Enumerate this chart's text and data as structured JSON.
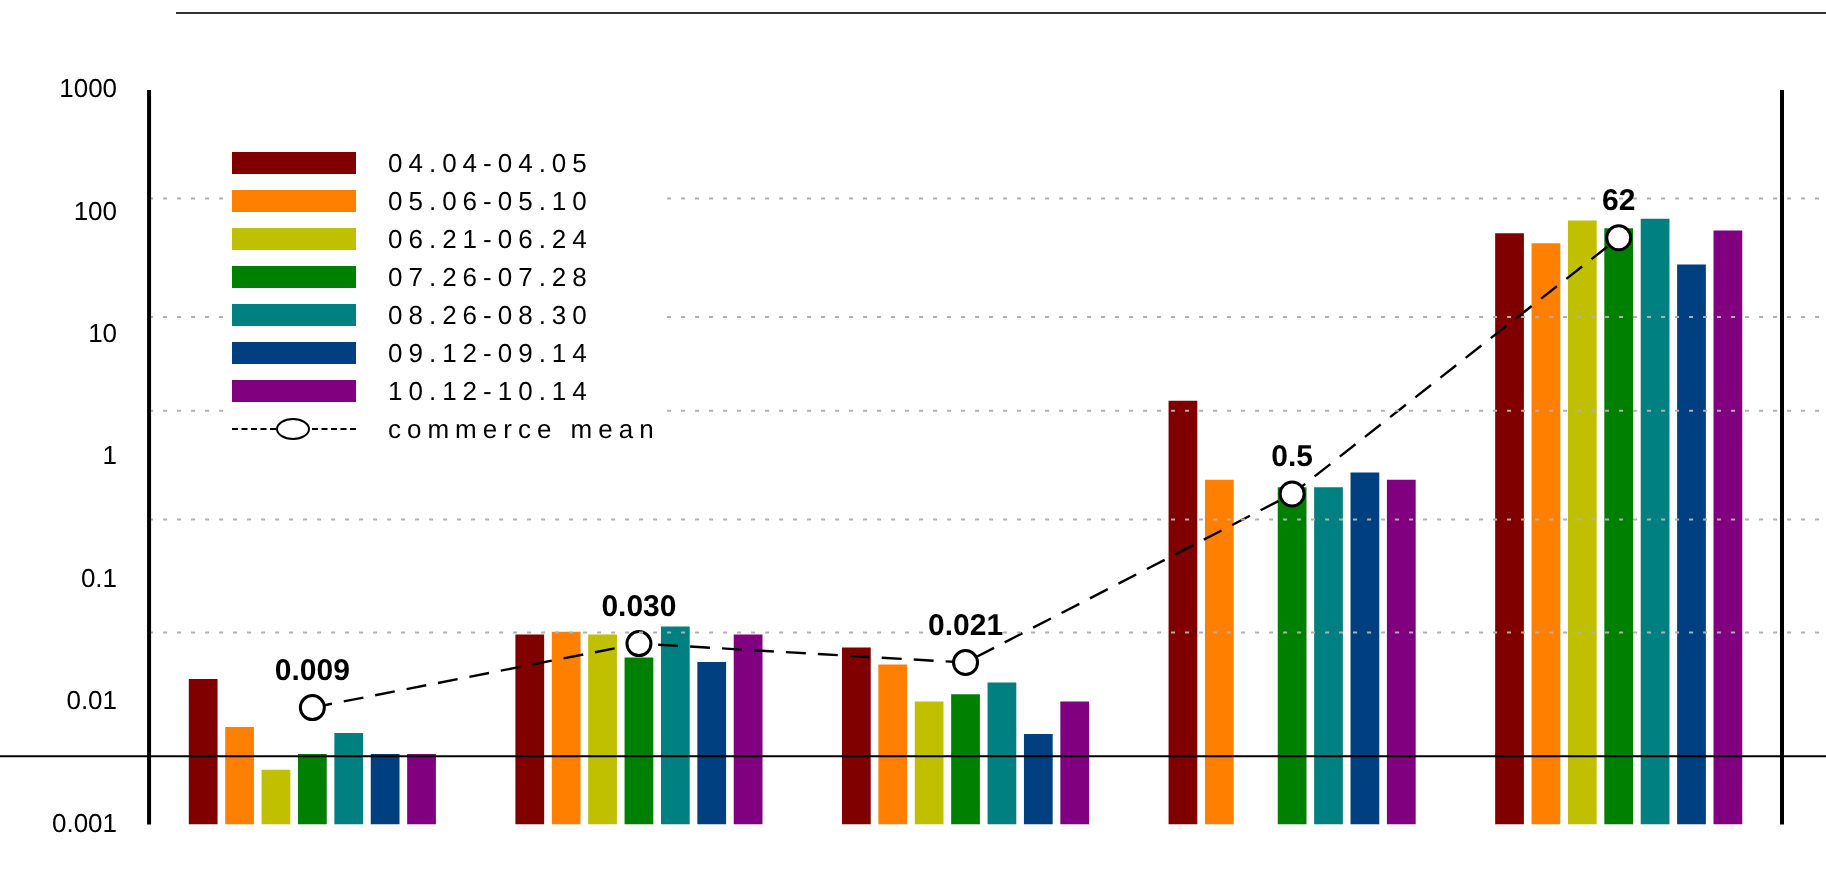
{
  "chart_data": {
    "type": "bar",
    "categories": [
      null,
      null,
      null,
      null,
      null
    ],
    "log": "y",
    "ylim": [
      0.001,
      1000
    ],
    "yticks": [
      {
        "value": 0.001,
        "label": "0.001"
      },
      {
        "value": 0.01,
        "label": "0.01"
      },
      {
        "value": 0.1,
        "label": "0.1"
      },
      {
        "value": 1,
        "label": "1"
      },
      {
        "value": 10,
        "label": "10"
      },
      {
        "value": 100,
        "label": "100"
      },
      {
        "value": 1000,
        "label": "1000"
      }
    ],
    "tick_labels": "y",
    "legend": "top left",
    "grid": false,
    "series": [
      {
        "name": "04.04-04.05",
        "color": "#800000",
        "values": [
          0.016,
          0.037,
          0.029,
          3.0,
          70
        ]
      },
      {
        "name": "05.06-05.10",
        "color": "#ff8000",
        "values": [
          0.0065,
          0.039,
          0.021,
          0.68,
          58
        ]
      },
      {
        "name": "06.21-06.24",
        "color": "#c0c000",
        "values": [
          0.0029,
          0.037,
          0.0105,
          null,
          89
        ]
      },
      {
        "name": "07.26-07.28",
        "color": "#008000",
        "values": [
          0.0039,
          0.024,
          0.012,
          0.59,
          77
        ]
      },
      {
        "name": "08.26-08.30",
        "color": "#008080",
        "values": [
          0.0058,
          0.043,
          0.015,
          0.59,
          92
        ]
      },
      {
        "name": "09.12-09.14",
        "color": "#004080",
        "values": [
          0.0039,
          0.022,
          0.0057,
          0.78,
          39
        ]
      },
      {
        "name": "10.12-10.14",
        "color": "#800080",
        "values": [
          0.0039,
          0.037,
          0.0105,
          0.68,
          74
        ]
      },
      {
        "name": "commerce mean",
        "type": "line",
        "color": "#000000",
        "line_style": "dashed",
        "marker": "circle",
        "values": [
          0.009,
          0.03,
          0.021,
          0.5,
          62
        ],
        "value_labels": [
          "0.009",
          "0.030",
          "0.021",
          "0.5",
          "62"
        ]
      }
    ],
    "ref_lines": [
      {
        "axis": "y",
        "value": 0.0036,
        "color": "#000000",
        "line_style": "solid"
      },
      {
        "axis": "y",
        "value": 0.037,
        "color": "#b0b0b0",
        "line_style": "dotted"
      },
      {
        "axis": "y",
        "value": 0.31,
        "color": "#b0b0b0",
        "line_style": "dotted"
      },
      {
        "axis": "y",
        "value": 2.4,
        "color": "#b0b0b0",
        "line_style": "dotted"
      },
      {
        "axis": "y",
        "value": 14,
        "color": "#b0b0b0",
        "line_style": "dotted"
      },
      {
        "axis": "y",
        "value": 130,
        "color": "#b0b0b0",
        "line_style": "dotted"
      }
    ]
  }
}
